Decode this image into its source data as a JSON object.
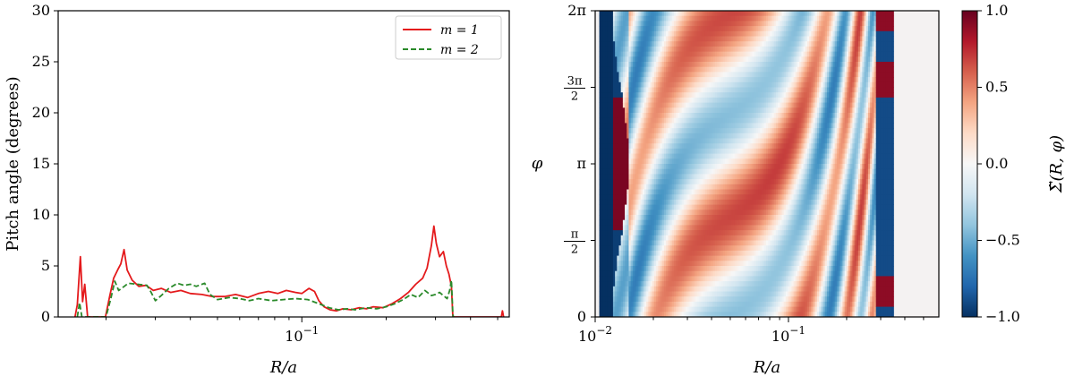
{
  "chart_data": [
    {
      "type": "line",
      "xscale": "log",
      "xlabel": "R/a",
      "ylabel": "Pitch angle (degrees)",
      "ylim": [
        0,
        30
      ],
      "xlim": [
        0.0135,
        0.55
      ],
      "yticks": [
        "0",
        "5",
        "10",
        "15",
        "20",
        "25",
        "30"
      ],
      "xticks": [
        {
          "value": 0.1,
          "label": "10^-1"
        }
      ],
      "legend": {
        "placement": "top-right"
      },
      "series": [
        {
          "name": "m = 1",
          "color": "#e41a1c",
          "style": "solid",
          "points": [
            [
              0.0155,
              0.0
            ],
            [
              0.0158,
              1.2
            ],
            [
              0.0162,
              5.9
            ],
            [
              0.0165,
              1.5
            ],
            [
              0.0168,
              3.2
            ],
            [
              0.0172,
              0.0
            ],
            [
              0.0199,
              0.0
            ],
            [
              0.0206,
              2.0
            ],
            [
              0.0213,
              3.8
            ],
            [
              0.022,
              4.6
            ],
            [
              0.0226,
              5.2
            ],
            [
              0.0232,
              6.6
            ],
            [
              0.0238,
              4.6
            ],
            [
              0.0248,
              3.6
            ],
            [
              0.0262,
              3.0
            ],
            [
              0.0278,
              3.1
            ],
            [
              0.0295,
              2.6
            ],
            [
              0.0315,
              2.8
            ],
            [
              0.034,
              2.4
            ],
            [
              0.037,
              2.6
            ],
            [
              0.04,
              2.3
            ],
            [
              0.044,
              2.2
            ],
            [
              0.048,
              2.0
            ],
            [
              0.053,
              2.0
            ],
            [
              0.058,
              2.2
            ],
            [
              0.064,
              1.9
            ],
            [
              0.07,
              2.3
            ],
            [
              0.076,
              2.5
            ],
            [
              0.082,
              2.3
            ],
            [
              0.088,
              2.6
            ],
            [
              0.095,
              2.4
            ],
            [
              0.1,
              2.3
            ],
            [
              0.106,
              2.8
            ],
            [
              0.111,
              2.5
            ],
            [
              0.115,
              1.6
            ],
            [
              0.12,
              1.0
            ],
            [
              0.126,
              0.7
            ],
            [
              0.133,
              0.6
            ],
            [
              0.14,
              0.8
            ],
            [
              0.15,
              0.7
            ],
            [
              0.16,
              0.9
            ],
            [
              0.17,
              0.8
            ],
            [
              0.18,
              1.0
            ],
            [
              0.195,
              0.9
            ],
            [
              0.21,
              1.3
            ],
            [
              0.225,
              1.8
            ],
            [
              0.24,
              2.4
            ],
            [
              0.255,
              3.2
            ],
            [
              0.27,
              3.8
            ],
            [
              0.28,
              4.8
            ],
            [
              0.29,
              7.0
            ],
            [
              0.296,
              8.9
            ],
            [
              0.302,
              7.2
            ],
            [
              0.31,
              5.9
            ],
            [
              0.32,
              6.4
            ],
            [
              0.328,
              5.0
            ],
            [
              0.335,
              4.2
            ],
            [
              0.342,
              3.0
            ],
            [
              0.346,
              0.0
            ],
            [
              0.515,
              0.0
            ],
            [
              0.52,
              0.6
            ],
            [
              0.525,
              0.0
            ]
          ]
        },
        {
          "name": "m = 2",
          "color": "#2a8a2a",
          "style": "dashed",
          "points": [
            [
              0.0158,
              0.0
            ],
            [
              0.0161,
              1.4
            ],
            [
              0.0164,
              0.0
            ],
            [
              0.02,
              0.0
            ],
            [
              0.0208,
              1.8
            ],
            [
              0.0215,
              3.5
            ],
            [
              0.0222,
              2.6
            ],
            [
              0.023,
              2.9
            ],
            [
              0.024,
              3.3
            ],
            [
              0.026,
              3.2
            ],
            [
              0.028,
              3.1
            ],
            [
              0.029,
              2.4
            ],
            [
              0.03,
              1.6
            ],
            [
              0.0315,
              2.1
            ],
            [
              0.0335,
              2.8
            ],
            [
              0.036,
              3.3
            ],
            [
              0.038,
              3.1
            ],
            [
              0.04,
              3.2
            ],
            [
              0.042,
              3.0
            ],
            [
              0.045,
              3.3
            ],
            [
              0.047,
              2.2
            ],
            [
              0.05,
              1.7
            ],
            [
              0.055,
              1.9
            ],
            [
              0.06,
              1.8
            ],
            [
              0.065,
              1.6
            ],
            [
              0.07,
              1.8
            ],
            [
              0.078,
              1.6
            ],
            [
              0.086,
              1.7
            ],
            [
              0.095,
              1.8
            ],
            [
              0.105,
              1.7
            ],
            [
              0.115,
              1.3
            ],
            [
              0.125,
              0.9
            ],
            [
              0.135,
              0.7
            ],
            [
              0.145,
              0.8
            ],
            [
              0.155,
              0.7
            ],
            [
              0.17,
              0.9
            ],
            [
              0.185,
              0.8
            ],
            [
              0.2,
              1.0
            ],
            [
              0.215,
              1.3
            ],
            [
              0.23,
              1.7
            ],
            [
              0.245,
              2.2
            ],
            [
              0.26,
              1.9
            ],
            [
              0.275,
              2.6
            ],
            [
              0.29,
              2.1
            ],
            [
              0.3,
              2.2
            ],
            [
              0.31,
              2.4
            ],
            [
              0.32,
              2.1
            ],
            [
              0.33,
              1.8
            ],
            [
              0.337,
              2.6
            ],
            [
              0.342,
              3.6
            ],
            [
              0.346,
              0.2
            ],
            [
              0.348,
              0.0
            ]
          ]
        }
      ]
    },
    {
      "type": "heatmap",
      "xscale": "log",
      "xlabel": "R/a",
      "ylabel": "φ",
      "xlim": [
        0.01,
        0.6
      ],
      "data_extent_x": [
        0.0105,
        0.35
      ],
      "ylim": [
        0,
        6.2832
      ],
      "xticks": [
        {
          "value": 0.01,
          "label": "10^-2"
        },
        {
          "value": 0.1,
          "label": "10^-1"
        }
      ],
      "yticks": [
        {
          "value": 0,
          "label": "0"
        },
        {
          "value": 1.5708,
          "label": "π/2"
        },
        {
          "value": 3.1416,
          "label": "π"
        },
        {
          "value": 4.7124,
          "label": "3π/2"
        },
        {
          "value": 6.2832,
          "label": "2π"
        }
      ],
      "colorbar": {
        "label": "Σ̃(R, φ)",
        "range": [
          -1.0,
          1.0
        ],
        "ticks": [
          "1.0",
          "0.5",
          "0.0",
          "−0.5",
          "−1.0"
        ],
        "colormap": "RdBu_r",
        "colors": [
          "#053061",
          "#2166ac",
          "#4393c3",
          "#92c5de",
          "#d1e5f0",
          "#f7f7f7",
          "#fddbc7",
          "#f4a582",
          "#d6604d",
          "#b2182b",
          "#67001f"
        ]
      }
    }
  ]
}
